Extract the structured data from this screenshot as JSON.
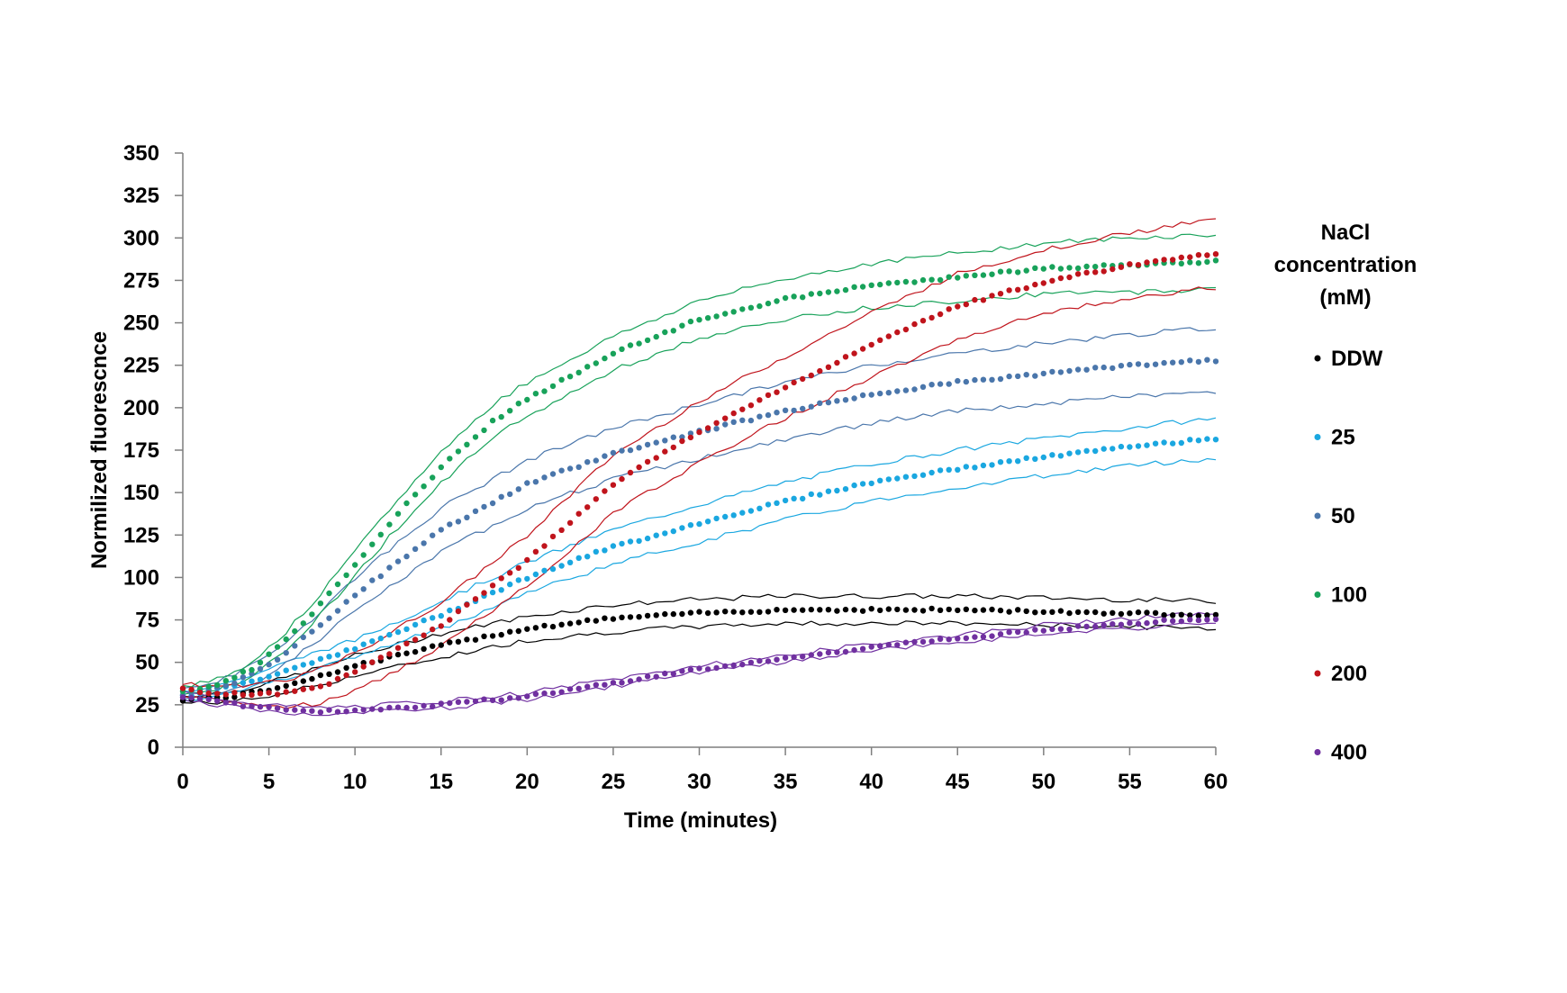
{
  "chart_data": {
    "type": "scatter",
    "xlabel": "Time (minutes)",
    "ylabel": "Normilized fluorescnce",
    "xlim": [
      0,
      60
    ],
    "ylim": [
      0,
      350
    ],
    "xticks": [
      0,
      5,
      10,
      15,
      20,
      25,
      30,
      35,
      40,
      45,
      50,
      55,
      60
    ],
    "yticks": [
      0,
      25,
      50,
      75,
      100,
      125,
      150,
      175,
      200,
      225,
      250,
      275,
      300,
      325,
      350
    ],
    "grid": false,
    "legend_title_lines": [
      "NaCl",
      "concentration",
      "(mM)"
    ],
    "legend_position": "right",
    "band_style": "thin lines above and below each series (mean ± error)",
    "series": [
      {
        "name": "DDW",
        "color": "#000000",
        "t": [
          0,
          3,
          5,
          8,
          10,
          15,
          20,
          25,
          30,
          35,
          40,
          45,
          50,
          55,
          60
        ],
        "mean": [
          28,
          30,
          34,
          42,
          48,
          60,
          70,
          76,
          79,
          81,
          81,
          81,
          80,
          79,
          78
        ],
        "err": [
          2,
          3,
          4,
          5,
          6,
          7,
          7,
          8,
          8,
          8,
          8,
          8,
          8,
          8,
          8
        ]
      },
      {
        "name": "25",
        "color": "#1aa7e0",
        "t": [
          0,
          3,
          5,
          8,
          10,
          15,
          20,
          25,
          30,
          35,
          40,
          45,
          50,
          55,
          60
        ],
        "mean": [
          30,
          36,
          42,
          52,
          58,
          78,
          100,
          118,
          132,
          145,
          156,
          164,
          171,
          177,
          182
        ],
        "err": [
          3,
          3,
          4,
          5,
          5,
          8,
          9,
          10,
          11,
          11,
          11,
          11,
          11,
          11,
          12
        ]
      },
      {
        "name": "50",
        "color": "#4a76ab",
        "t": [
          0,
          3,
          5,
          8,
          10,
          15,
          20,
          25,
          30,
          35,
          40,
          45,
          50,
          55,
          60
        ],
        "mean": [
          31,
          38,
          48,
          72,
          90,
          128,
          155,
          173,
          186,
          198,
          208,
          215,
          220,
          225,
          228
        ],
        "err": [
          3,
          4,
          6,
          8,
          10,
          13,
          14,
          15,
          16,
          17,
          17,
          17,
          18,
          18,
          19
        ]
      },
      {
        "name": "100",
        "color": "#18a25a",
        "t": [
          0,
          2,
          4,
          6,
          8,
          10,
          12,
          15,
          18,
          20,
          25,
          30,
          35,
          40,
          45,
          50,
          55,
          60
        ],
        "mean": [
          33,
          37,
          46,
          63,
          84,
          108,
          132,
          165,
          192,
          205,
          232,
          252,
          264,
          272,
          277,
          282,
          284,
          286
        ],
        "err": [
          3,
          3,
          4,
          5,
          6,
          7,
          8,
          9,
          10,
          10,
          10,
          11,
          12,
          13,
          14,
          15,
          16,
          16
        ]
      },
      {
        "name": "200",
        "color": "#c0141c",
        "t": [
          0,
          2,
          4,
          6,
          8,
          10,
          12,
          15,
          18,
          20,
          25,
          30,
          35,
          40,
          45,
          50,
          55,
          60
        ],
        "mean": [
          34,
          32,
          31,
          32,
          36,
          44,
          55,
          72,
          95,
          110,
          155,
          186,
          212,
          237,
          260,
          274,
          284,
          291
        ],
        "err": [
          3,
          4,
          6,
          8,
          10,
          11,
          12,
          13,
          14,
          15,
          17,
          18,
          18,
          19,
          19,
          19,
          19,
          20
        ]
      },
      {
        "name": "400",
        "color": "#7030a0",
        "t": [
          0,
          2,
          4,
          6,
          8,
          10,
          15,
          20,
          25,
          30,
          35,
          40,
          45,
          50,
          55,
          60
        ],
        "mean": [
          30,
          27,
          24,
          22,
          21,
          22,
          25,
          30,
          38,
          46,
          52,
          59,
          64,
          69,
          73,
          76
        ],
        "err": [
          2,
          2,
          2,
          2,
          2,
          2,
          2,
          2,
          2,
          2,
          2,
          2,
          2,
          3,
          3,
          3
        ]
      }
    ]
  }
}
